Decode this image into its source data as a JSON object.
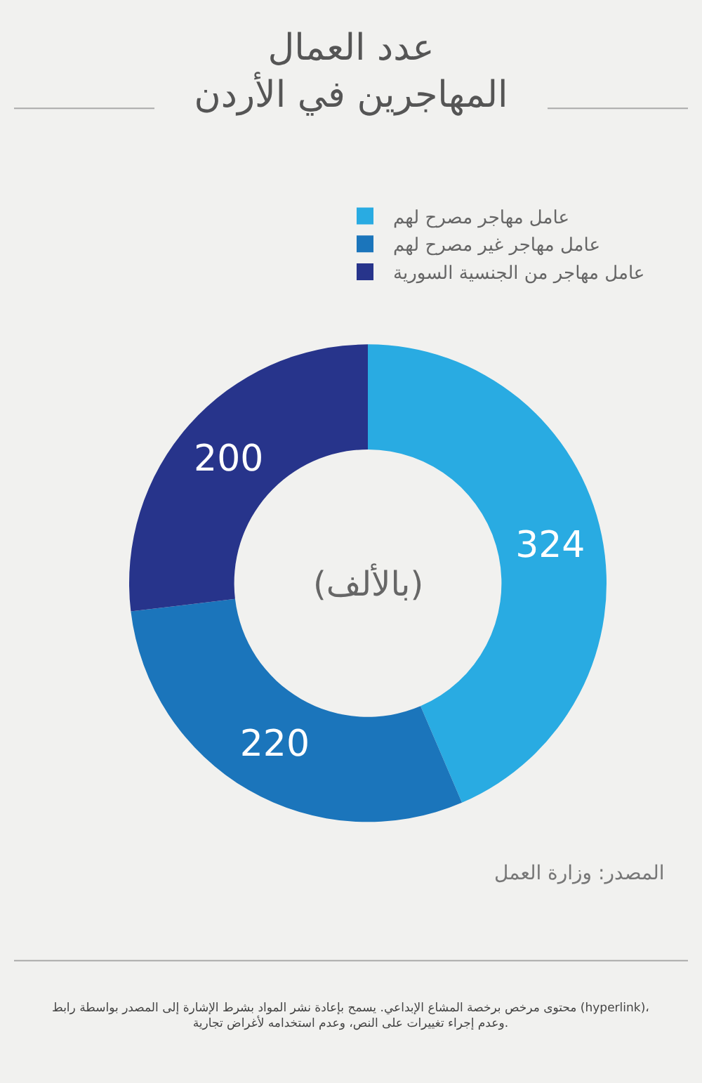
{
  "chart_data": {
    "type": "donut",
    "title": "عدد العمال\nالمهاجرين في الأردن",
    "categories": [
      "عامل مهاجر مصرح لهم",
      "عامل مهاجر غير مصرح لهم",
      "عامل مهاجر من الجنسية السورية"
    ],
    "values": [
      324,
      220,
      200
    ],
    "colors": [
      "#29abe2",
      "#1b75bb",
      "#27348b"
    ],
    "data_labels": true,
    "legend": "top right",
    "annotations": [
      "(بالألف)",
      "المصدر: وزارة العمل",
      "محتوى مرخص برخصة المشاع الإبداعي. يسمح بإعادة نشر المواد بشرط الإشارة إلى المصدر بواسطة رابط (hyperlink)،\nوعدم إجراء تغييرات على النص، وعدم استخدامه لأغراض تجارية."
    ]
  }
}
